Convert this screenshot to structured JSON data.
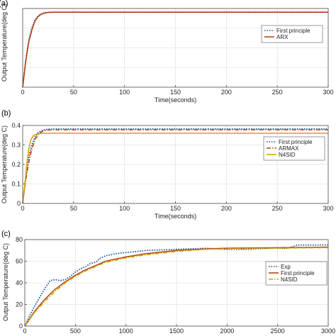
{
  "chart_data": [
    {
      "type": "line",
      "panel_label": "(a)",
      "xlabel": "Time(seconds)",
      "ylabel": "Output Temperature(deg C)",
      "xlim": [
        0,
        300
      ],
      "ylim": [
        0,
        0.4
      ],
      "xticks": [
        0,
        50,
        100,
        150,
        200,
        250,
        300
      ],
      "yticks": [],
      "grid": true,
      "legend_position": "right-middle",
      "series": [
        {
          "name": "First principle",
          "color": "#1f5b9a",
          "style": "dotted",
          "x": [
            0,
            3,
            6,
            9,
            12,
            15,
            18,
            21,
            25,
            30,
            40,
            60,
            100,
            300
          ],
          "y": [
            0,
            0.14,
            0.24,
            0.3,
            0.34,
            0.362,
            0.372,
            0.378,
            0.381,
            0.382,
            0.382,
            0.382,
            0.382,
            0.382
          ]
        },
        {
          "name": "ARX",
          "color": "#b24a1a",
          "style": "solid",
          "x": [
            0,
            3,
            6,
            9,
            12,
            15,
            18,
            21,
            25,
            30,
            40,
            60,
            100,
            300
          ],
          "y": [
            0,
            0.13,
            0.23,
            0.29,
            0.335,
            0.358,
            0.37,
            0.376,
            0.38,
            0.381,
            0.381,
            0.381,
            0.381,
            0.381
          ]
        }
      ]
    },
    {
      "type": "line",
      "panel_label": "(b)",
      "xlabel": "Time(seconds)",
      "ylabel": "Output Temperature(deg C)",
      "xlim": [
        0,
        300
      ],
      "ylim": [
        0,
        0.4
      ],
      "xticks": [
        0,
        50,
        100,
        150,
        200,
        250,
        300
      ],
      "yticks": [
        0,
        0.1,
        0.2,
        0.3,
        0.4
      ],
      "ytick_labels": [
        "0",
        "0.1",
        "0.2",
        "0.3",
        "0.4"
      ],
      "grid": true,
      "legend_position": "right-middle",
      "series": [
        {
          "name": "First principle",
          "color": "#1f5b9a",
          "style": "dotted",
          "x": [
            0,
            3,
            6,
            9,
            12,
            15,
            18,
            21,
            25,
            30,
            40,
            60,
            100,
            300
          ],
          "y": [
            0,
            0.14,
            0.24,
            0.3,
            0.34,
            0.362,
            0.372,
            0.378,
            0.381,
            0.382,
            0.382,
            0.382,
            0.382,
            0.382
          ]
        },
        {
          "name": "ARMAX",
          "color": "#b24a1a",
          "style": "dashdot",
          "x": [
            0,
            3,
            6,
            9,
            12,
            15,
            18,
            21,
            25,
            30,
            40,
            60,
            100,
            300
          ],
          "y": [
            0,
            0.12,
            0.21,
            0.28,
            0.325,
            0.352,
            0.366,
            0.373,
            0.377,
            0.378,
            0.378,
            0.378,
            0.378,
            0.378
          ]
        },
        {
          "name": "N4SID",
          "color": "#d9a400",
          "style": "solid",
          "x": [
            0,
            2,
            4,
            6,
            8,
            10,
            13,
            16,
            20,
            30,
            60,
            100,
            300
          ],
          "y": [
            0,
            0.09,
            0.2,
            0.28,
            0.325,
            0.345,
            0.355,
            0.358,
            0.36,
            0.36,
            0.36,
            0.36,
            0.36
          ]
        }
      ]
    },
    {
      "type": "line",
      "panel_label": "(c)",
      "xlabel": "",
      "ylabel": "Output Temperature(deg C)",
      "xlim": [
        0,
        3000
      ],
      "ylim": [
        0,
        80
      ],
      "xticks": [
        0,
        500,
        1000,
        1500,
        2000,
        2500,
        3000
      ],
      "yticks": [
        0,
        20,
        40,
        60,
        80
      ],
      "ytick_labels": [
        "0",
        "20",
        "40",
        "60",
        "80"
      ],
      "grid": true,
      "legend_position": "right-middle",
      "series": [
        {
          "name": "Exp",
          "color": "#1f5b9a",
          "style": "dotted",
          "x": [
            0,
            50,
            100,
            150,
            200,
            250,
            300,
            350,
            400,
            450,
            500,
            550,
            600,
            650,
            700,
            750,
            800,
            900,
            1000,
            1200,
            1500,
            1800,
            2000,
            2200,
            2400,
            2600,
            2700,
            2800,
            3000
          ],
          "y": [
            0,
            10,
            19,
            27,
            35,
            42,
            43,
            42,
            43,
            46,
            50,
            53,
            55,
            58,
            59,
            63,
            65,
            67,
            68,
            70,
            71,
            72,
            71,
            71,
            72,
            72,
            75,
            75,
            75
          ]
        },
        {
          "name": "First principle",
          "color": "#b24a1a",
          "style": "solid",
          "x": [
            0,
            100,
            200,
            300,
            400,
            500,
            600,
            700,
            800,
            1000,
            1200,
            1500,
            1800,
            2000,
            2500,
            3000
          ],
          "y": [
            0,
            14,
            25,
            34,
            41,
            47,
            52,
            56,
            60,
            64,
            67,
            70,
            71.5,
            72,
            72.5,
            73
          ]
        },
        {
          "name": "N4SID",
          "color": "#d9a400",
          "style": "dashdot",
          "x": [
            0,
            100,
            200,
            300,
            400,
            500,
            600,
            700,
            800,
            1000,
            1200,
            1500,
            1800,
            2000,
            2500,
            3000
          ],
          "y": [
            0,
            13,
            23,
            32,
            40,
            46,
            51,
            55,
            59,
            63,
            66,
            69,
            71,
            71.5,
            72,
            72.5
          ]
        }
      ]
    }
  ]
}
